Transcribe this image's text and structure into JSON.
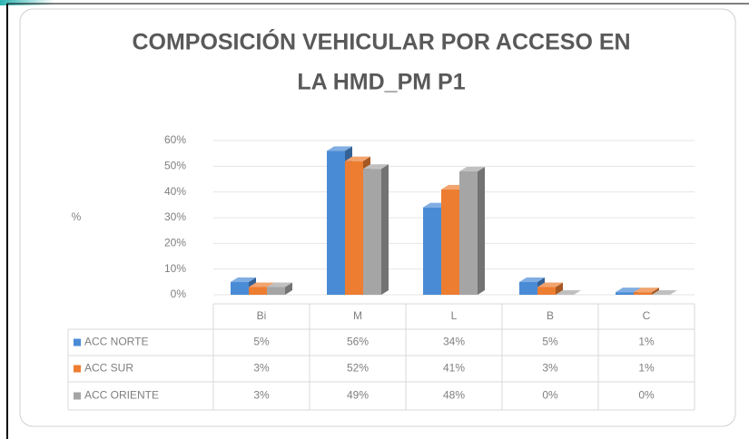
{
  "chart_data": {
    "type": "bar",
    "title_lines": [
      "COMPOSICIÓN VEHICULAR POR ACCESO EN",
      "LA HMD_PM P1"
    ],
    "y_label": "%",
    "categories": [
      "Bi",
      "M",
      "L",
      "B",
      "C"
    ],
    "series": [
      {
        "name": "ACC NORTE",
        "color": "#4a8bd6",
        "values": [
          5,
          56,
          34,
          5,
          1
        ],
        "value_labels": [
          "5%",
          "56%",
          "34%",
          "5%",
          "1%"
        ]
      },
      {
        "name": "ACC SUR",
        "color": "#ed7d31",
        "values": [
          3,
          52,
          41,
          3,
          1
        ],
        "value_labels": [
          "3%",
          "52%",
          "41%",
          "3%",
          "1%"
        ]
      },
      {
        "name": "ACC ORIENTE",
        "color": "#a5a5a5",
        "values": [
          3,
          49,
          48,
          0,
          0
        ],
        "value_labels": [
          "3%",
          "49%",
          "48%",
          "0%",
          "0%"
        ]
      }
    ],
    "ylim": [
      0,
      60
    ],
    "yticks": [
      {
        "value": 0,
        "label": "0%"
      },
      {
        "value": 10,
        "label": "10%"
      },
      {
        "value": 20,
        "label": "20%"
      },
      {
        "value": 30,
        "label": "30%"
      },
      {
        "value": 40,
        "label": "40%"
      },
      {
        "value": 50,
        "label": "50%"
      },
      {
        "value": 60,
        "label": "60%"
      }
    ],
    "grid": true
  }
}
